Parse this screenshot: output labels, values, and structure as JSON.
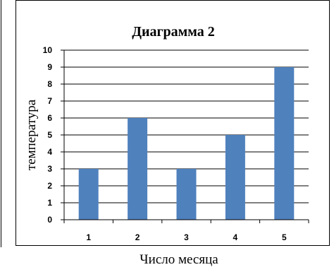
{
  "chart_data": {
    "type": "bar",
    "title": "Диаграмма 2",
    "xlabel": "Число месяца",
    "ylabel": "температура",
    "categories": [
      "1",
      "2",
      "3",
      "4",
      "5"
    ],
    "series": [
      {
        "values": [
          3,
          6,
          3,
          5,
          9
        ]
      }
    ],
    "ylim": [
      0,
      10
    ],
    "yticks": [
      "0",
      "1",
      "2",
      "3",
      "4",
      "5",
      "6",
      "7",
      "8",
      "9",
      "10"
    ],
    "grid": true,
    "legend": "none"
  },
  "colors": {
    "bar": "#4F81BD",
    "grid": "#000000",
    "frame": "#000000"
  }
}
